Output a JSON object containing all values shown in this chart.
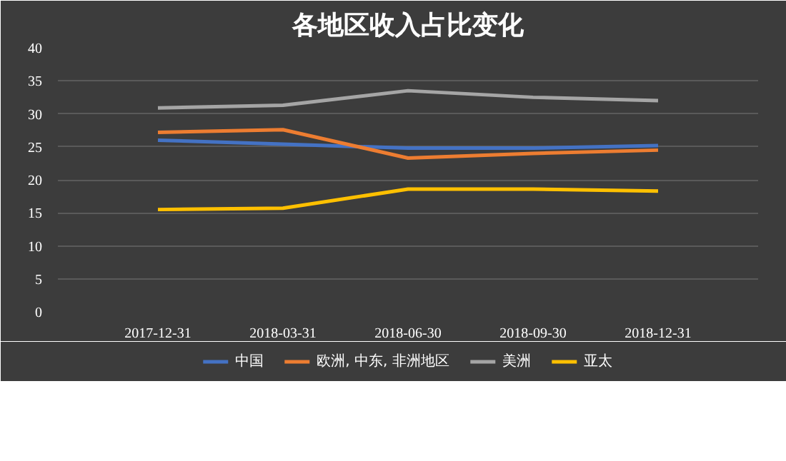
{
  "chart_data": {
    "type": "line",
    "title": "各地区收入占比变化",
    "categories": [
      "2017-12-31",
      "2018-03-31",
      "2018-06-30",
      "2018-09-30",
      "2018-12-31"
    ],
    "series": [
      {
        "name": "中国",
        "color": "#4472c4",
        "values": [
          26,
          25.4,
          24.8,
          24.8,
          25.2
        ]
      },
      {
        "name": "欧洲, 中东, 非洲地区",
        "color": "#ed7d31",
        "values": [
          27.2,
          27.6,
          23.3,
          24,
          24.5
        ]
      },
      {
        "name": "美洲",
        "color": "#a5a5a5",
        "values": [
          30.9,
          31.3,
          33.5,
          32.5,
          32
        ]
      },
      {
        "name": "亚太",
        "color": "#ffc000",
        "values": [
          15.5,
          15.7,
          18.6,
          18.6,
          18.3
        ]
      }
    ],
    "ylim": [
      0,
      40
    ],
    "yticks": [
      0,
      5,
      10,
      15,
      20,
      25,
      30,
      35,
      40
    ],
    "grid": "y",
    "legend": "bottom",
    "marker": "none",
    "line_style": "solid"
  }
}
